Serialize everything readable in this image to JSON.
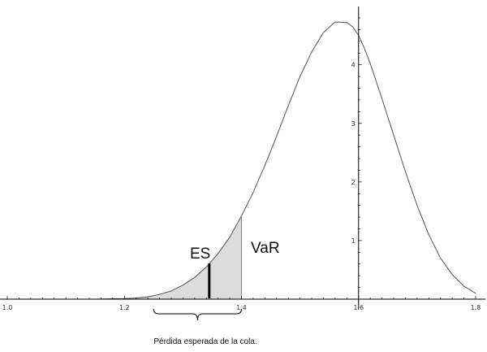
{
  "chart_data": {
    "type": "area",
    "title": "",
    "xlabel": "",
    "ylabel": "",
    "xlim": [
      1.0,
      1.8
    ],
    "ylim": [
      0,
      4.8
    ],
    "x_ticks": [
      1.0,
      1.2,
      1.4,
      1.6,
      1.8
    ],
    "x_tick_labels": [
      "1.0",
      "1.2",
      "1.4",
      "1.6",
      "1.8"
    ],
    "y_ticks": [
      1,
      2,
      3,
      4
    ],
    "y_tick_labels": [
      "1",
      "2",
      "3",
      "4"
    ],
    "y_axis_at_x": 1.6,
    "grid": false,
    "legend": "none",
    "series": [
      {
        "x": [
          1.0,
          1.05,
          1.1,
          1.15,
          1.2,
          1.22,
          1.24,
          1.26,
          1.28,
          1.3,
          1.32,
          1.34,
          1.36,
          1.38,
          1.4,
          1.42,
          1.44,
          1.46,
          1.48,
          1.5,
          1.52,
          1.54,
          1.56,
          1.58,
          1.59,
          1.6,
          1.61,
          1.62,
          1.64,
          1.66,
          1.68,
          1.7,
          1.72,
          1.74,
          1.76,
          1.78,
          1.8
        ],
        "y": [
          0.0,
          0.0,
          0.0,
          0.0,
          0.01,
          0.02,
          0.04,
          0.08,
          0.14,
          0.24,
          0.37,
          0.55,
          0.78,
          1.06,
          1.42,
          1.82,
          2.28,
          2.78,
          3.3,
          3.8,
          4.22,
          4.55,
          4.73,
          4.72,
          4.65,
          4.5,
          4.28,
          4.02,
          3.42,
          2.8,
          2.18,
          1.6,
          1.1,
          0.7,
          0.42,
          0.22,
          0.1
        ]
      }
    ],
    "shaded_region": {
      "x_start": 1.22,
      "x_end": 1.4,
      "color": "#dcdcdc"
    },
    "markers": [
      {
        "label": "ES",
        "x": 1.345,
        "y_top": 0.6
      },
      {
        "label": "VaR",
        "x": 1.4
      }
    ],
    "annotations": {
      "es_label": "ES",
      "var_label": "VaR",
      "brace_label": "Pérdida esperada de la cola."
    },
    "brace": {
      "x_start": 1.25,
      "x_end": 1.4
    },
    "colors": {
      "curve": "#555555",
      "fill": "#dcdcdc",
      "axis": "#000000",
      "marker": "#000000"
    }
  }
}
